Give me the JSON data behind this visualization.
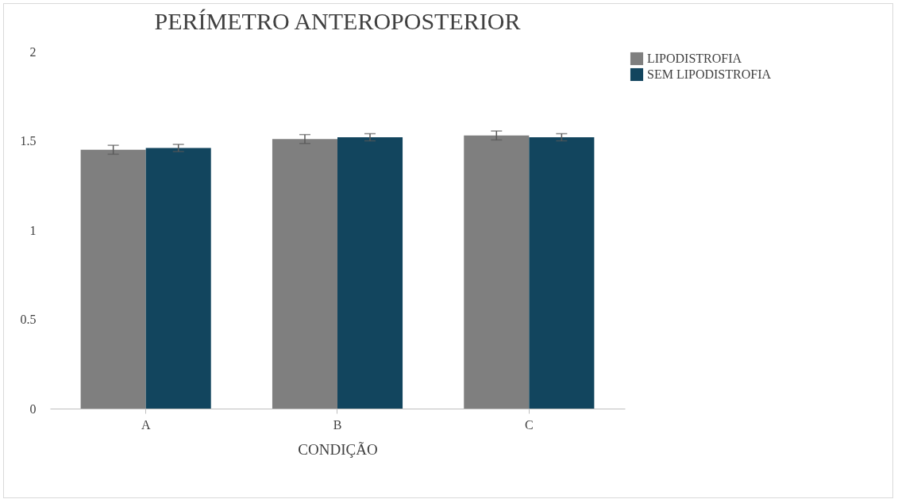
{
  "chart_data": {
    "type": "bar",
    "title": "PERÍMETRO ANTEROPOSTERIOR",
    "xlabel": "CONDIÇÃO",
    "categories": [
      "A",
      "B",
      "C"
    ],
    "series": [
      {
        "name": "LIPODISTROFIA",
        "color": "#7f7f7f",
        "values": [
          1.45,
          1.51,
          1.53
        ],
        "errors": [
          0.025,
          0.025,
          0.025
        ]
      },
      {
        "name": "SEM LIPODISTROFIA",
        "color": "#12455e",
        "values": [
          1.46,
          1.52,
          1.52
        ],
        "errors": [
          0.02,
          0.02,
          0.02
        ]
      }
    ],
    "ylim": [
      0,
      2
    ],
    "yticks": [
      0,
      0.5,
      1,
      1.5,
      2
    ],
    "grid": false,
    "legend": "right"
  }
}
